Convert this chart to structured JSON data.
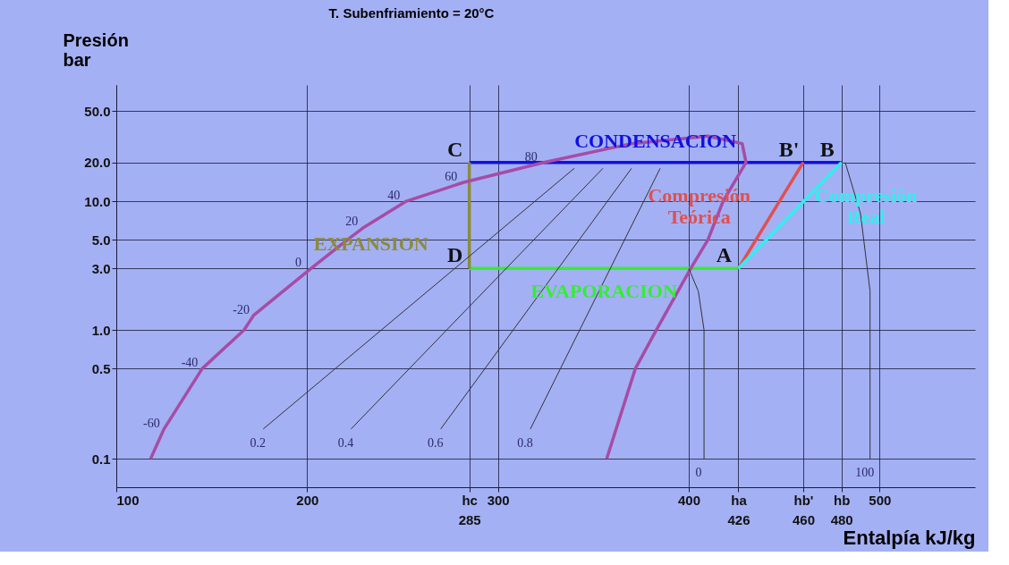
{
  "chart_data": {
    "type": "line",
    "title": "T. Subenfriamiento = 20°C",
    "xlabel": "Entalpía kJ/kg",
    "ylabel": "Presión bar",
    "xlim": [
      100,
      550
    ],
    "ylim": [
      0.06,
      80
    ],
    "log": "y",
    "grid": true,
    "legend": false,
    "marker": "none",
    "line_style": "solid",
    "xticks": [
      100,
      200,
      {
        "value": 285,
        "label": "hc 285"
      },
      300,
      400,
      {
        "value": 426,
        "label": "ha 426"
      },
      {
        "value": 460,
        "label": "hb' 460"
      },
      {
        "value": 480,
        "label": "hb 480"
      },
      500
    ],
    "yticks": [
      {
        "value": 0.1,
        "label": "0.1"
      },
      {
        "value": 0.5,
        "label": "0.5"
      },
      {
        "value": 1,
        "label": "1.0"
      },
      {
        "value": 3,
        "label": "3.0"
      },
      {
        "value": 5,
        "label": "5.0"
      },
      {
        "value": 10,
        "label": "10.0"
      },
      {
        "value": 20,
        "label": "20.0"
      },
      {
        "value": 50,
        "label": "50.0"
      }
    ],
    "series": [
      {
        "name": "CONDENSACION",
        "color": "#1010e0",
        "x": [
          285,
          480
        ],
        "values": [
          20,
          20
        ]
      },
      {
        "name": "EVAPORACION",
        "color": "#33ee33",
        "x": [
          285,
          426
        ],
        "values": [
          3,
          3
        ]
      },
      {
        "name": "EXPANSION",
        "color": "#8b8b3a",
        "x": [
          285,
          285
        ],
        "values": [
          20,
          3
        ]
      },
      {
        "name": "Compresión Teórica",
        "color": "#e05050",
        "x": [
          426,
          460
        ],
        "values": [
          3,
          20
        ]
      },
      {
        "name": "Compresión Real",
        "color": "#33eeee",
        "x": [
          426,
          480
        ],
        "values": [
          3,
          20
        ]
      },
      {
        "color": "#a64ca6",
        "x": [
          118,
          125,
          145,
          167,
          172,
          202,
          221,
          230,
          252,
          282,
          324,
          370,
          410,
          428,
          430,
          418,
          410,
          401,
          383,
          372,
          357
        ],
        "values": [
          0.1,
          0.17,
          0.5,
          1,
          1.3,
          3,
          5,
          6.3,
          10,
          14,
          20,
          28,
          32,
          28,
          20,
          10,
          5,
          3,
          1,
          0.5,
          0.1
        ]
      },
      {
        "color": "#333333",
        "x": [
          408,
          408,
          405,
          400
        ],
        "values": [
          0.1,
          1,
          2,
          3
        ]
      },
      {
        "color": "#333333",
        "x": [
          495,
          495,
          490,
          482
        ],
        "values": [
          0.1,
          2,
          8,
          20
        ]
      },
      {
        "color": "#333333",
        "x": [
          177,
          340
        ],
        "values": [
          0.17,
          18
        ]
      },
      {
        "color": "#333333",
        "x": [
          223,
          355
        ],
        "values": [
          0.17,
          18
        ]
      },
      {
        "color": "#333333",
        "x": [
          270,
          370
        ],
        "values": [
          0.17,
          18
        ]
      },
      {
        "color": "#333333",
        "x": [
          317,
          385
        ],
        "values": [
          0.17,
          18
        ]
      }
    ],
    "annotations": [
      {
        "text": "A",
        "x": 426,
        "y": 3
      },
      {
        "text": "B",
        "x": 480,
        "y": 20
      },
      {
        "text": "B'",
        "x": 460,
        "y": 20
      },
      {
        "text": "C",
        "x": 285,
        "y": 20
      },
      {
        "text": "D",
        "x": 285,
        "y": 3
      },
      {
        "text": "-60",
        "x": 125,
        "y": 0.17
      },
      {
        "text": "-40",
        "x": 145,
        "y": 0.5
      },
      {
        "text": "-20",
        "x": 172,
        "y": 1.3
      },
      {
        "text": "0",
        "x": 202,
        "y": 3
      },
      {
        "text": "20",
        "x": 230,
        "y": 6.3
      },
      {
        "text": "40",
        "x": 252,
        "y": 10
      },
      {
        "text": "60",
        "x": 282,
        "y": 14
      },
      {
        "text": "80",
        "x": 324,
        "y": 20
      },
      {
        "text": "0.2",
        "x": 177,
        "y": 0.17
      },
      {
        "text": "0.4",
        "x": 223,
        "y": 0.17
      },
      {
        "text": "0.6",
        "x": 270,
        "y": 0.17
      },
      {
        "text": "0.8",
        "x": 317,
        "y": 0.17
      },
      {
        "text": "0",
        "x": 408,
        "y": 0.1
      },
      {
        "text": "100",
        "x": 495,
        "y": 0.1
      }
    ]
  }
}
